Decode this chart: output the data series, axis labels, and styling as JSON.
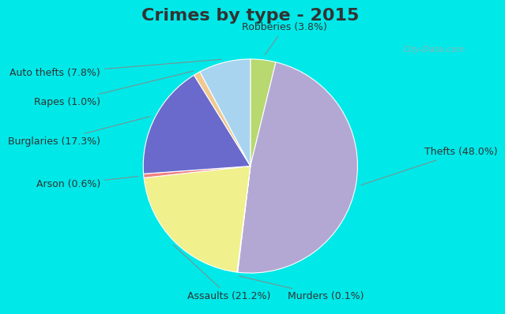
{
  "title": "Crimes by type - 2015",
  "values_ordered": [
    3.8,
    48.0,
    0.1,
    21.2,
    0.6,
    17.3,
    1.0,
    7.8
  ],
  "colors_ordered": [
    "#b8d870",
    "#b3a8d4",
    "#d4d4d4",
    "#f0f08c",
    "#f08080",
    "#6a6acd",
    "#f0c890",
    "#a8d4f0"
  ],
  "label_texts_ordered": [
    "Robberies (3.8%)",
    "Thefts (48.0%)",
    "Murders (0.1%)",
    "Assaults (21.2%)",
    "Arson (0.6%)",
    "Burglaries (17.3%)",
    "Rapes (1.0%)",
    "Auto thefts (7.8%)"
  ],
  "background_cyan": "#00e8e8",
  "background_inner": "#d8eedf",
  "title_fontsize": 16,
  "label_fontsize": 9,
  "watermark": "City-Data.com"
}
